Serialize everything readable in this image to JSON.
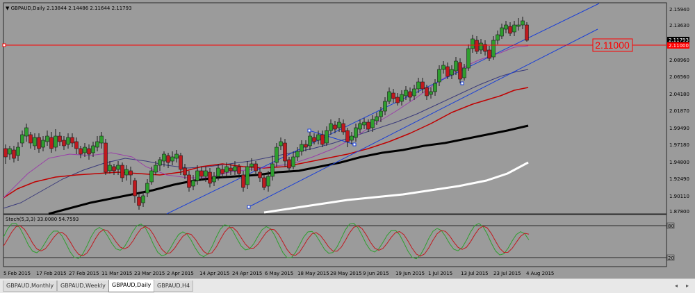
{
  "chart": {
    "title": "GBPAUD,Daily  2.13844 2.14486 2.11644 2.11793",
    "price_axis_labels": [
      "2.15940",
      "2.13630",
      "2.11000",
      "2.08960",
      "2.06560",
      "2.04180",
      "2.01870",
      "1.99490",
      "1.97180",
      "1.94800",
      "1.92490",
      "1.90110",
      "1.87800"
    ],
    "current_price_label": "2.11793",
    "hline_price_axis_label": "2.11000",
    "hline_callout": "2.11000",
    "date_labels": [
      "5 Feb 2015",
      "17 Feb 2015",
      "27 Feb 2015",
      "11 Mar 2015",
      "23 Mar 2015",
      "2 Apr 2015",
      "14 Apr 2015",
      "24 Apr 2015",
      "6 May 2015",
      "18 May 2015",
      "28 May 2015",
      "9 Jun 2015",
      "19 Jun 2015",
      "1 Jul 2015",
      "13 Jul 2015",
      "23 Jul 2015",
      "4 Aug 2015"
    ],
    "colors": {
      "background": "#9b9b9b",
      "bull_candle": "#2e9e2e",
      "bear_candle": "#c0191e",
      "hline": "#ff0000",
      "channel": "#1a3fd6",
      "ma_fast": "#9a3fa8",
      "ma_mid_navy": "#3a3a7a",
      "ma_red": "#c00000",
      "ma_black": "#000000",
      "ma_white": "#ffffff"
    }
  },
  "stochastic": {
    "title": "Stoch(5,3,3) 33.0080 54.7593",
    "level_high": "80",
    "level_low": "20"
  },
  "tabs": [
    {
      "label": "GBPAUD,Monthly",
      "active": false
    },
    {
      "label": "GBPAUD,Weekly",
      "active": false
    },
    {
      "label": "GBPAUD,Daily",
      "active": true
    },
    {
      "label": "GBPAUD,H4",
      "active": false
    }
  ],
  "scroll": {
    "left": "◂",
    "right": "▸"
  }
}
